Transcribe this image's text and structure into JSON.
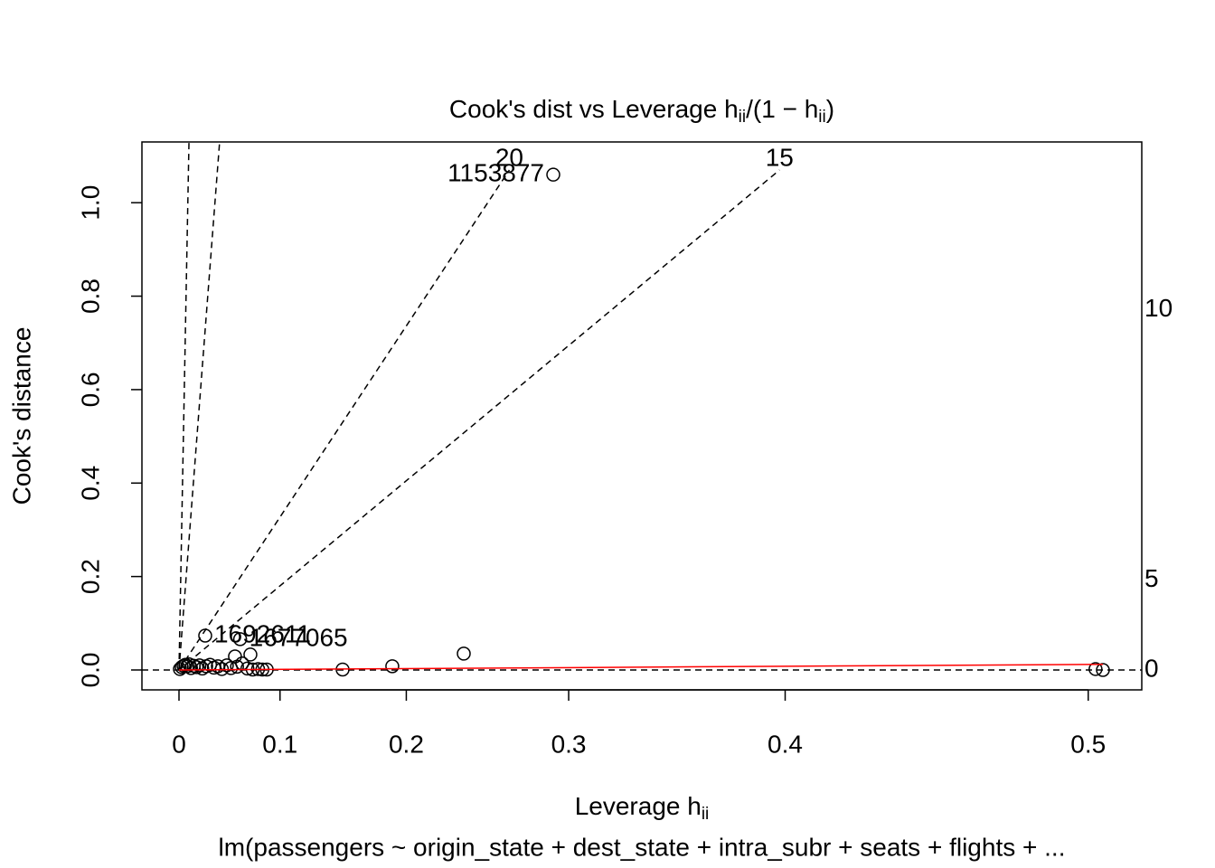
{
  "chart_data": {
    "type": "scatter",
    "title": [
      "Cook's dist vs Leverage  h",
      "ii",
      "/(1 − h",
      "ii",
      ")"
    ],
    "xlabel": [
      "Leverage  h",
      "ii"
    ],
    "ylabel": "Cook's distance",
    "subtitle": "lm(passengers ~ origin_state + dest_state + intra_subr + seats + flights +  ...",
    "xscale": "odds",
    "xlim": [
      -0.0425,
      0.5143
    ],
    "ylim": [
      -0.0426,
      1.13
    ],
    "xticks": [
      0,
      0.1,
      0.2,
      0.3,
      0.4,
      0.5
    ],
    "yticks": [
      {
        "value": 0,
        "label": "0.0"
      },
      0.2,
      0.4,
      0.6,
      0.8,
      {
        "value": 1,
        "label": "1.0"
      }
    ],
    "series": [
      {
        "color": "#000000",
        "x": [
          0.2916,
          0.028,
          0.058,
          0.0728,
          0.2385,
          0.19,
          0.1525,
          0.502,
          0.504,
          0.001,
          0.003,
          0.005,
          0.007,
          0.009,
          0.011,
          0.013,
          0.016,
          0.019,
          0.022,
          0.025,
          0.029,
          0.033,
          0.037,
          0.041,
          0.045,
          0.05,
          0.054,
          0.06,
          0.065,
          0.07,
          0.075,
          0.08,
          0.084,
          0.088,
          0.063
        ],
        "values": [
          1.06,
          0.0735,
          0.029,
          0.033,
          0.035,
          0.008,
          0.001,
          0.002,
          0,
          0.002,
          0.006,
          0.009,
          0.011,
          0.008,
          0.012,
          0.004,
          0.009,
          0.006,
          0.01,
          0.003,
          0.008,
          0.011,
          0.005,
          0.008,
          0.002,
          0.01,
          0.004,
          0.007,
          0.014,
          0.003,
          0.001,
          0.002,
          0.001,
          0.001,
          0.066
        ],
        "point_labels": [
          "1153877",
          "1692611",
          null,
          null,
          null,
          null,
          null,
          null,
          null,
          null,
          null,
          null,
          null,
          null,
          null,
          null,
          null,
          null,
          null,
          null,
          null,
          null,
          null,
          null,
          null,
          null,
          null,
          null,
          null,
          null,
          null,
          null,
          null,
          null,
          "1677065"
        ]
      },
      {
        "color": "#ff0000",
        "line": true,
        "x": [
          0,
          0.504
        ],
        "values": [
          0,
          0.012
        ]
      }
    ],
    "contours": [
      {
        "slope": 103,
        "line": true
      },
      {
        "slope": 25.3,
        "line": true
      },
      {
        "label": "20",
        "slope": 2.945,
        "line": true
      },
      {
        "label": "15",
        "slope": 1.62,
        "line": true
      },
      {
        "label": "10",
        "slope": 0.728,
        "line": false
      },
      {
        "label": "5",
        "slope": 0.182,
        "line": false
      },
      {
        "label": "0",
        "slope": 0,
        "line": true
      }
    ]
  }
}
